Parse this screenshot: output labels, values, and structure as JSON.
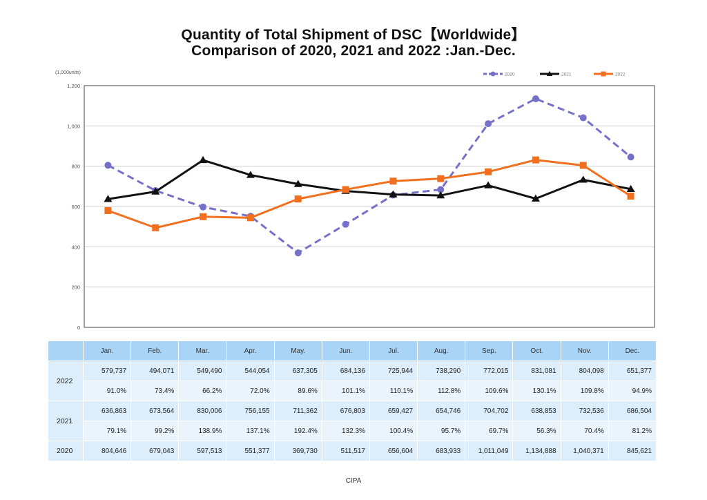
{
  "title_line1": "Quantity of Total Shipment of DSC【Worldwide】",
  "title_line2": "Comparison of 2020, 2021 and 2022 :Jan.-Dec.",
  "source": "CIPA",
  "table": {
    "months": [
      "Jan.",
      "Feb.",
      "Mar.",
      "Apr.",
      "May.",
      "Jun.",
      "Jul.",
      "Aug.",
      "Sep.",
      "Oct.",
      "Nov.",
      "Dec."
    ],
    "rows": [
      {
        "year": "2022",
        "values": [
          "579,737",
          "494,071",
          "549,490",
          "544,054",
          "637,305",
          "684,136",
          "725,944",
          "738,290",
          "772,015",
          "831,081",
          "804,098",
          "651,377"
        ],
        "ratios": [
          "91.0%",
          "73.4%",
          "66.2%",
          "72.0%",
          "89.6%",
          "101.1%",
          "110.1%",
          "112.8%",
          "109.6%",
          "130.1%",
          "109.8%",
          "94.9%"
        ]
      },
      {
        "year": "2021",
        "values": [
          "636,863",
          "673,564",
          "830,006",
          "756,155",
          "711,362",
          "676,803",
          "659,427",
          "654,746",
          "704,702",
          "638,853",
          "732,536",
          "686,504"
        ],
        "ratios": [
          "79.1%",
          "99.2%",
          "138.9%",
          "137.1%",
          "192.4%",
          "132.3%",
          "100.4%",
          "95.7%",
          "69.7%",
          "56.3%",
          "70.4%",
          "81.2%"
        ]
      },
      {
        "year": "2020",
        "values": [
          "804,646",
          "679,043",
          "597,513",
          "551,377",
          "369,730",
          "511,517",
          "656,604",
          "683,933",
          "1,011,049",
          "1,134,888",
          "1,040,371",
          "845,621"
        ]
      }
    ]
  },
  "chart_data": {
    "type": "line",
    "unit_label": "(1,000units)",
    "categories": [
      "Jan.",
      "Feb.",
      "Mar.",
      "Apr.",
      "May.",
      "Jun.",
      "Jul.",
      "Aug.",
      "Sep.",
      "Oct.",
      "Nov.",
      "Dec."
    ],
    "ylim": [
      0,
      1200
    ],
    "yticks": [
      0,
      200,
      400,
      600,
      800,
      1000,
      1200
    ],
    "ytick_labels": [
      "0",
      "200",
      "400",
      "600",
      "800",
      "1,000",
      "1,200"
    ],
    "grid": true,
    "legend_position": "top-right",
    "series": [
      {
        "name": "2020",
        "color": "#7570c8",
        "style": "dashed",
        "marker": "circle",
        "values": [
          804.646,
          679.043,
          597.513,
          551.377,
          369.73,
          511.517,
          656.604,
          683.933,
          1011.049,
          1134.888,
          1040.371,
          845.621
        ]
      },
      {
        "name": "2021",
        "color": "#111111",
        "style": "solid",
        "marker": "triangle",
        "values": [
          636.863,
          673.564,
          830.006,
          756.155,
          711.362,
          676.803,
          659.427,
          654.746,
          704.702,
          638.853,
          732.536,
          686.504
        ]
      },
      {
        "name": "2022",
        "color": "#f07020",
        "style": "solid",
        "marker": "square",
        "values": [
          579.737,
          494.071,
          549.49,
          544.054,
          637.305,
          684.136,
          725.944,
          738.29,
          772.015,
          831.081,
          804.098,
          651.377
        ]
      }
    ]
  }
}
